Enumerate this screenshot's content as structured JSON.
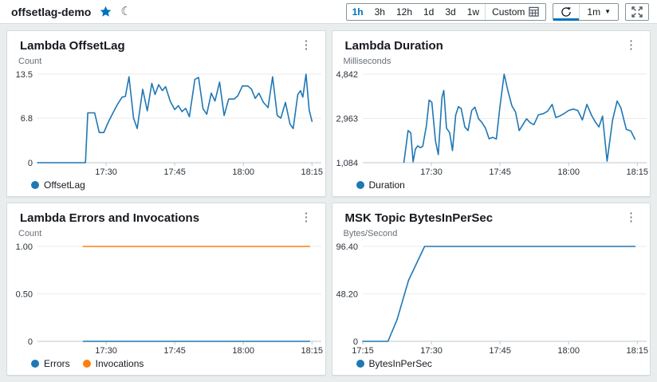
{
  "header": {
    "title": "offsetlag-demo",
    "favorite_icon": "star-filled",
    "theme_icon": "moon-crescent",
    "time_ranges": [
      "1h",
      "3h",
      "12h",
      "1d",
      "3d",
      "1w"
    ],
    "active_time_range": "1h",
    "custom_label": "Custom",
    "refresh_interval": "1m",
    "accent_color": "#0073bb"
  },
  "charts": [
    {
      "type": "line",
      "title": "Lambda OffsetLag",
      "units": "Count",
      "ylim": [
        0,
        13.5
      ],
      "xlim": [
        0,
        61
      ],
      "y_ticks": [
        {
          "v": 0,
          "label": "0"
        },
        {
          "v": 6.8,
          "label": "6.8"
        },
        {
          "v": 13.5,
          "label": "13.5"
        }
      ],
      "x_ticks": [
        {
          "t": 15,
          "label": "17:30"
        },
        {
          "t": 30,
          "label": "17:45"
        },
        {
          "t": 45,
          "label": "18:00"
        },
        {
          "t": 60,
          "label": "18:15"
        }
      ],
      "series": [
        {
          "name": "OffsetLag",
          "color": "#1f77b4",
          "points": [
            [
              0,
              0
            ],
            [
              10.5,
              0
            ],
            [
              11,
              7.6
            ],
            [
              12.5,
              7.6
            ],
            [
              13.5,
              4.6
            ],
            [
              14.5,
              4.6
            ],
            [
              15.5,
              6.2
            ],
            [
              16.5,
              7.6
            ],
            [
              17.5,
              8.9
            ],
            [
              18.5,
              10.0
            ],
            [
              19.2,
              10.1
            ],
            [
              20,
              13.1
            ],
            [
              21,
              6.8
            ],
            [
              21.8,
              5.2
            ],
            [
              23,
              11.2
            ],
            [
              24,
              7.9
            ],
            [
              25,
              12.1
            ],
            [
              25.7,
              10.4
            ],
            [
              26.5,
              11.9
            ],
            [
              27.3,
              11.0
            ],
            [
              28,
              11.6
            ],
            [
              29,
              9.4
            ],
            [
              30,
              8.1
            ],
            [
              30.8,
              8.7
            ],
            [
              31.6,
              7.8
            ],
            [
              32.4,
              8.3
            ],
            [
              33.2,
              7.0
            ],
            [
              34.4,
              12.7
            ],
            [
              35.2,
              13.0
            ],
            [
              36.2,
              8.2
            ],
            [
              37,
              7.4
            ],
            [
              38,
              10.6
            ],
            [
              38.8,
              9.4
            ],
            [
              39.8,
              12.3
            ],
            [
              40.8,
              7.2
            ],
            [
              41.8,
              9.7
            ],
            [
              43,
              9.7
            ],
            [
              43.8,
              10.2
            ],
            [
              44.8,
              11.7
            ],
            [
              46,
              11.7
            ],
            [
              46.8,
              11.2
            ],
            [
              47.6,
              9.8
            ],
            [
              48.4,
              10.6
            ],
            [
              49.4,
              9.2
            ],
            [
              50.4,
              8.4
            ],
            [
              51.4,
              13.1
            ],
            [
              52.4,
              7.2
            ],
            [
              53.2,
              6.8
            ],
            [
              54.2,
              9.2
            ],
            [
              55.2,
              5.9
            ],
            [
              55.9,
              5.2
            ],
            [
              56.9,
              10.4
            ],
            [
              57.5,
              11.0
            ],
            [
              58,
              10.0
            ],
            [
              58.7,
              13.5
            ],
            [
              59.4,
              8.0
            ],
            [
              60,
              6.3
            ]
          ]
        }
      ]
    },
    {
      "type": "line",
      "title": "Lambda Duration",
      "units": "Milliseconds",
      "ylim": [
        1084,
        4842
      ],
      "xlim": [
        0,
        61
      ],
      "y_ticks": [
        {
          "v": 1084,
          "label": "1,084"
        },
        {
          "v": 2963,
          "label": "2,963"
        },
        {
          "v": 4842,
          "label": "4,842"
        }
      ],
      "x_ticks": [
        {
          "t": 15,
          "label": "17:30"
        },
        {
          "t": 30,
          "label": "17:45"
        },
        {
          "t": 45,
          "label": "18:00"
        },
        {
          "t": 60,
          "label": "18:15"
        }
      ],
      "series": [
        {
          "name": "Duration",
          "color": "#1f77b4",
          "points": [
            [
              9,
              1100
            ],
            [
              9.9,
              2450
            ],
            [
              10.5,
              2350
            ],
            [
              11,
              1120
            ],
            [
              11.5,
              1660
            ],
            [
              12,
              1800
            ],
            [
              12.6,
              1720
            ],
            [
              13.1,
              1780
            ],
            [
              13.9,
              2650
            ],
            [
              14.5,
              3740
            ],
            [
              15.1,
              3650
            ],
            [
              15.9,
              2000
            ],
            [
              16.5,
              1430
            ],
            [
              17.3,
              3860
            ],
            [
              17.7,
              4150
            ],
            [
              18.3,
              2550
            ],
            [
              19,
              2350
            ],
            [
              19.6,
              1600
            ],
            [
              20.3,
              3100
            ],
            [
              20.9,
              3460
            ],
            [
              21.5,
              3380
            ],
            [
              22.3,
              2600
            ],
            [
              23,
              2450
            ],
            [
              23.8,
              3300
            ],
            [
              24.5,
              3440
            ],
            [
              25.3,
              2950
            ],
            [
              26,
              2800
            ],
            [
              26.8,
              2560
            ],
            [
              27.6,
              2100
            ],
            [
              28.4,
              2160
            ],
            [
              29.2,
              2090
            ],
            [
              30,
              3480
            ],
            [
              30.9,
              4842
            ],
            [
              31.7,
              4150
            ],
            [
              32.6,
              3500
            ],
            [
              33.4,
              3230
            ],
            [
              34.2,
              2450
            ],
            [
              35,
              2700
            ],
            [
              35.8,
              2950
            ],
            [
              36.6,
              2780
            ],
            [
              37.4,
              2700
            ],
            [
              38.4,
              3120
            ],
            [
              39.4,
              3160
            ],
            [
              40.4,
              3270
            ],
            [
              41.4,
              3560
            ],
            [
              42.2,
              3000
            ],
            [
              43,
              3060
            ],
            [
              44,
              3170
            ],
            [
              45,
              3300
            ],
            [
              46,
              3360
            ],
            [
              47,
              3300
            ],
            [
              48,
              2900
            ],
            [
              49,
              3560
            ],
            [
              50,
              3100
            ],
            [
              50.8,
              2820
            ],
            [
              51.6,
              2600
            ],
            [
              52.4,
              3060
            ],
            [
              53.4,
              1150
            ],
            [
              54.6,
              2900
            ],
            [
              55.6,
              3700
            ],
            [
              56.4,
              3420
            ],
            [
              57.6,
              2500
            ],
            [
              58.6,
              2430
            ],
            [
              59.5,
              2080
            ]
          ]
        }
      ]
    },
    {
      "type": "line",
      "title": "Lambda Errors and Invocations",
      "units": "Count",
      "ylim": [
        0,
        1
      ],
      "xlim": [
        0,
        61
      ],
      "y_ticks": [
        {
          "v": 0,
          "label": "0"
        },
        {
          "v": 0.5,
          "label": "0.50"
        },
        {
          "v": 1,
          "label": "1.00"
        }
      ],
      "x_ticks": [
        {
          "t": 15,
          "label": "17:30"
        },
        {
          "t": 30,
          "label": "17:45"
        },
        {
          "t": 45,
          "label": "18:00"
        },
        {
          "t": 60,
          "label": "18:15"
        }
      ],
      "series": [
        {
          "name": "Errors",
          "color": "#1f77b4",
          "points": [
            [
              10,
              0
            ],
            [
              59.5,
              0
            ]
          ]
        },
        {
          "name": "Invocations",
          "color": "#ff7f0e",
          "points": [
            [
              10,
              1
            ],
            [
              59.5,
              1
            ]
          ]
        }
      ]
    },
    {
      "type": "line",
      "title": "MSK Topic BytesInPerSec",
      "units": "Bytes/Second",
      "ylim": [
        0,
        96.4
      ],
      "xlim": [
        0,
        61
      ],
      "y_ticks": [
        {
          "v": 0,
          "label": "0"
        },
        {
          "v": 48.2,
          "label": "48.20"
        },
        {
          "v": 96.4,
          "label": "96.40"
        }
      ],
      "x_ticks": [
        {
          "t": 0,
          "label": "17:15"
        },
        {
          "t": 15,
          "label": "17:30"
        },
        {
          "t": 30,
          "label": "17:45"
        },
        {
          "t": 45,
          "label": "18:00"
        },
        {
          "t": 60,
          "label": "18:15"
        }
      ],
      "series": [
        {
          "name": "BytesInPerSec",
          "color": "#1f77b4",
          "points": [
            [
              0,
              0
            ],
            [
              5.5,
              0
            ],
            [
              7.5,
              22
            ],
            [
              10,
              62
            ],
            [
              13.5,
              96.4
            ],
            [
              59.5,
              96.4
            ]
          ]
        }
      ]
    }
  ]
}
